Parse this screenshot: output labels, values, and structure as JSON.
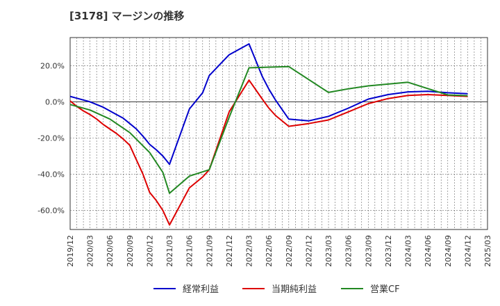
{
  "chart_data": {
    "type": "line",
    "title": "[3178]  マージンの推移",
    "y_ticks": [
      "20.0%",
      "0.0%",
      "-20.0%",
      "-40.0%",
      "-60.0%"
    ],
    "y_tick_values": [
      20,
      0,
      -20,
      -40,
      -60
    ],
    "ylim": [
      -70.5,
      35.5
    ],
    "x_ticks": [
      "2019/12",
      "2020/03",
      "2020/06",
      "2020/09",
      "2020/12",
      "2021/03",
      "2021/06",
      "2021/09",
      "2021/12",
      "2022/03",
      "2022/06",
      "2022/09",
      "2022/12",
      "2023/03",
      "2023/06",
      "2023/09",
      "2023/12",
      "2024/03",
      "2024/06",
      "2024/09",
      "2024/12",
      "2025/03"
    ],
    "x_dates": [
      "2019-12",
      "2020-03",
      "2020-06",
      "2020-09",
      "2020-12",
      "2021-03",
      "2021-06",
      "2021-09",
      "2021-12",
      "2022-03",
      "2022-06",
      "2022-09",
      "2022-12",
      "2023-03",
      "2023-06",
      "2023-09",
      "2023-12",
      "2024-03",
      "2024-06",
      "2024-09",
      "2024-12",
      "2025-03"
    ],
    "grid": true,
    "legend_position": "bottom",
    "series": [
      {
        "name": "経常利益",
        "color": "#0000cc",
        "points": [
          [
            "2019-12",
            3.0
          ],
          [
            "2020-01",
            2.0
          ],
          [
            "2020-02",
            1.0
          ],
          [
            "2020-03",
            0.0
          ],
          [
            "2020-04",
            -1.5
          ],
          [
            "2020-05",
            -3.0
          ],
          [
            "2020-06",
            -5.0
          ],
          [
            "2020-07",
            -7.0
          ],
          [
            "2020-08",
            -9.0
          ],
          [
            "2020-09",
            -12.0
          ],
          [
            "2020-10",
            -15.0
          ],
          [
            "2020-11",
            -19.0
          ],
          [
            "2020-12",
            -23.5
          ],
          [
            "2021-01",
            -26.5
          ],
          [
            "2021-02",
            -30.0
          ],
          [
            "2021-03",
            -34.5
          ],
          [
            "2021-06",
            -4.0
          ],
          [
            "2021-08",
            5.0
          ],
          [
            "2021-09",
            14.5
          ],
          [
            "2021-12",
            26.0
          ],
          [
            "2022-03",
            32.0
          ],
          [
            "2022-05",
            14.0
          ],
          [
            "2022-06",
            7.0
          ],
          [
            "2022-07",
            1.0
          ],
          [
            "2022-09",
            -9.5
          ],
          [
            "2022-12",
            -10.5
          ],
          [
            "2023-03",
            -8.0
          ],
          [
            "2023-06",
            -3.5
          ],
          [
            "2023-09",
            1.5
          ],
          [
            "2023-12",
            4.0
          ],
          [
            "2024-03",
            5.5
          ],
          [
            "2024-06",
            5.8
          ],
          [
            "2024-09",
            5.0
          ],
          [
            "2024-12",
            4.5
          ]
        ]
      },
      {
        "name": "当期純利益",
        "color": "#dd0000",
        "points": [
          [
            "2019-12",
            0.5
          ],
          [
            "2020-01",
            -2.5
          ],
          [
            "2020-02",
            -5.0
          ],
          [
            "2020-03",
            -7.0
          ],
          [
            "2020-04",
            -9.5
          ],
          [
            "2020-05",
            -12.5
          ],
          [
            "2020-06",
            -15.0
          ],
          [
            "2020-07",
            -17.5
          ],
          [
            "2020-08",
            -20.5
          ],
          [
            "2020-09",
            -24.0
          ],
          [
            "2020-10",
            -32.0
          ],
          [
            "2020-11",
            -40.0
          ],
          [
            "2020-12",
            -50.0
          ],
          [
            "2021-01",
            -54.5
          ],
          [
            "2021-02",
            -60.0
          ],
          [
            "2021-03",
            -68.0
          ],
          [
            "2021-06",
            -47.5
          ],
          [
            "2021-08",
            -41.5
          ],
          [
            "2021-09",
            -37.5
          ],
          [
            "2021-12",
            -5.5
          ],
          [
            "2022-03",
            12.0
          ],
          [
            "2022-05",
            1.5
          ],
          [
            "2022-06",
            -3.5
          ],
          [
            "2022-07",
            -7.5
          ],
          [
            "2022-09",
            -13.5
          ],
          [
            "2022-12",
            -12.0
          ],
          [
            "2023-03",
            -10.0
          ],
          [
            "2023-06",
            -5.5
          ],
          [
            "2023-09",
            -1.0
          ],
          [
            "2023-12",
            1.8
          ],
          [
            "2024-03",
            3.5
          ],
          [
            "2024-06",
            4.0
          ],
          [
            "2024-09",
            3.5
          ],
          [
            "2024-12",
            3.0
          ]
        ]
      },
      {
        "name": "営業CF",
        "color": "#228822",
        "points": [
          [
            "2019-12",
            -1.5
          ],
          [
            "2020-03",
            -4.5
          ],
          [
            "2020-06",
            -9.5
          ],
          [
            "2020-09",
            -17.0
          ],
          [
            "2020-12",
            -28.0
          ],
          [
            "2021-02",
            -39.0
          ],
          [
            "2021-03",
            -50.5
          ],
          [
            "2021-06",
            -41.0
          ],
          [
            "2021-09",
            -37.5
          ],
          [
            "2021-12",
            -8.5
          ],
          [
            "2022-03",
            18.8
          ],
          [
            "2022-09",
            19.5
          ],
          [
            "2023-03",
            5.2
          ],
          [
            "2023-06",
            7.2
          ],
          [
            "2023-09",
            8.8
          ],
          [
            "2023-12",
            9.8
          ],
          [
            "2024-03",
            10.8
          ],
          [
            "2024-06",
            7.3
          ],
          [
            "2024-09",
            3.8
          ],
          [
            "2024-12",
            3.4
          ]
        ]
      }
    ]
  }
}
